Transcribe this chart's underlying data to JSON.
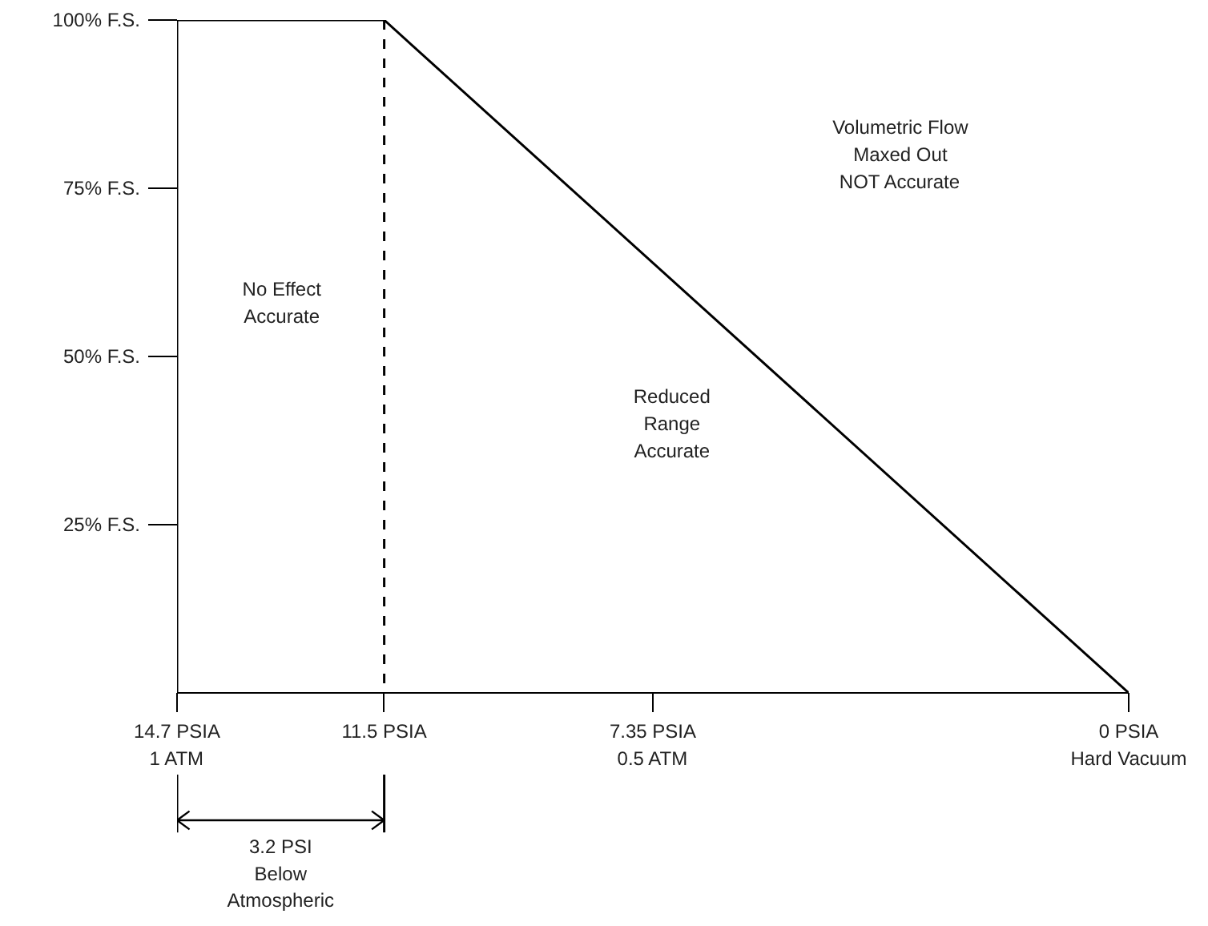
{
  "chart_data": {
    "type": "line",
    "x": [
      14.7,
      14.7,
      11.5,
      0
    ],
    "series": [
      {
        "color": "#000000",
        "values": [
          0,
          100,
          100,
          0
        ]
      }
    ],
    "xlim": [
      14.7,
      0
    ],
    "ylim": [
      0,
      100
    ],
    "xticks": [
      {
        "value": 14.7,
        "label": "14.7 PSIA\n1 ATM"
      },
      {
        "value": 11.5,
        "label": "11.5 PSIA"
      },
      {
        "value": 7.35,
        "label": "7.35 PSIA\n0.5 ATM"
      },
      {
        "value": 0,
        "label": "0 PSIA\nHard Vacuum"
      }
    ],
    "yticks": [
      {
        "value": 25,
        "label": "25% F.S."
      },
      {
        "value": 50,
        "label": "50% F.S."
      },
      {
        "value": 75,
        "label": "75% F.S."
      },
      {
        "value": 100,
        "label": "100% F.S."
      }
    ],
    "ref_lines": [
      {
        "axis": "x",
        "value": 11.5,
        "line_style": "dashed",
        "color": "#000000"
      }
    ],
    "annotations": [
      "No Effect\nAccurate",
      "Reduced\nRange\nAccurate",
      "Volumetric Flow\nMaxed Out\nNOT Accurate",
      "3.2 PSI\nBelow\nAtmospheric"
    ],
    "grid": false,
    "marker": "none",
    "line_style": "solid"
  }
}
